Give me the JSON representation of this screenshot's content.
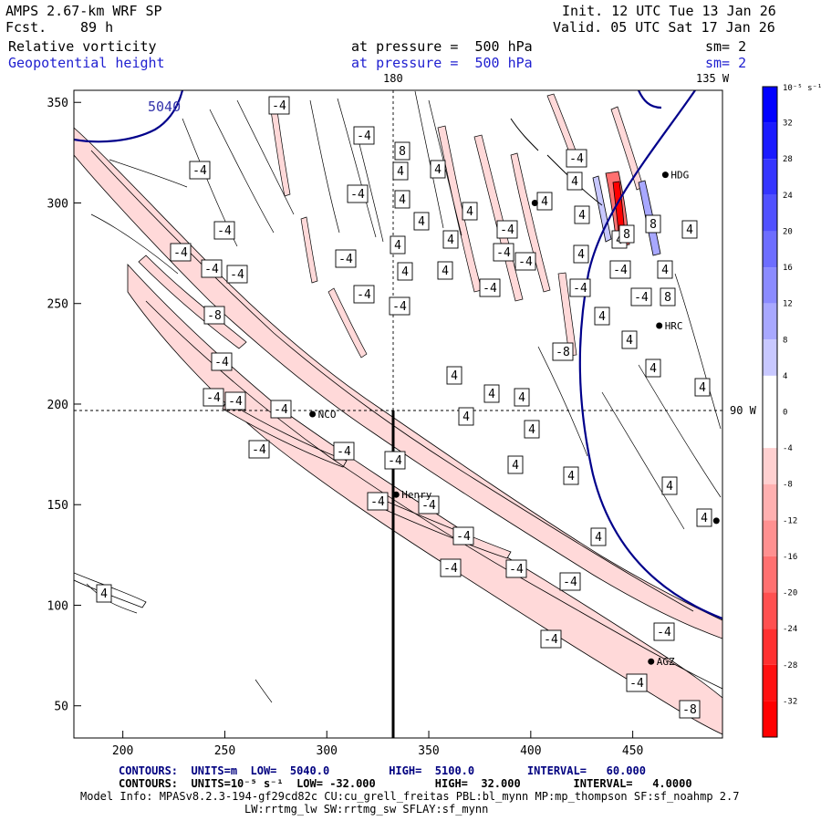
{
  "header": {
    "model": "AMPS 2.67-km WRF SP",
    "fcst_label": "Fcst.",
    "fcst_value": "89 h",
    "init": "Init. 12 UTC Tue 13 Jan 26",
    "valid": "Valid. 05 UTC Sat 17 Jan 26",
    "field1": "Relative vorticity",
    "field2": "Geopotential height",
    "level1": "at pressure =  500 hPa",
    "level2": "at pressure =  500 hPa",
    "sm1": "sm= 2",
    "sm2": "sm= 2"
  },
  "footer": {
    "line1_label": "CONTOURS:  UNITS=m  LOW=  5040.0         HIGH=  5100.0        INTERVAL=   60.000",
    "line2_label": "CONTOURS:  UNITS=10⁻⁵ s⁻¹  LOW= -32.000         HIGH=  32.000        INTERVAL=   4.0000",
    "model_info": "Model Info: MPASv8.2.3-194-gf29cd82c CU:cu_grell_freitas PBL:bl_mynn MP:mp_thompson SF:sf_noahmp 2.7",
    "model_info2": "LW:rrtmg_lw SW:rrtmg_sw SFLAY:sf_mynn"
  },
  "chart_data": {
    "type": "contour-map",
    "x_ticks": [
      "200",
      "250",
      "300",
      "350",
      "400",
      "450"
    ],
    "y_ticks": [
      "50",
      "100",
      "150",
      "200",
      "250",
      "300",
      "350"
    ],
    "xlim": [
      176,
      494
    ],
    "ylim": [
      34,
      356
    ],
    "top_labels": {
      "lon180": "180",
      "lon135": "135 W"
    },
    "right_label": "90 W",
    "height_contour_label": "5040",
    "stations": [
      {
        "name": "NCO",
        "x": 293,
        "y": 195
      },
      {
        "name": "Henry",
        "x": 334,
        "y": 155
      },
      {
        "name": "HRC",
        "x": 463,
        "y": 239
      },
      {
        "name": "HDG",
        "x": 466,
        "y": 314
      },
      {
        "name": "AGZ",
        "x": 459,
        "y": 72
      },
      {
        "name": "",
        "x": 402,
        "y": 300
      },
      {
        "name": "",
        "x": 491,
        "y": 142
      }
    ],
    "contour_labels": [
      {
        "t": "-4",
        "x": 219,
        "y": 186
      },
      {
        "t": "-4",
        "x": 198,
        "y": 276
      },
      {
        "t": "-4",
        "x": 232,
        "y": 294
      },
      {
        "t": "-4",
        "x": 246,
        "y": 252
      },
      {
        "t": "-8",
        "x": 235,
        "y": 345
      },
      {
        "t": "-4",
        "x": 260,
        "y": 300
      },
      {
        "t": "-4",
        "x": 243,
        "y": 396
      },
      {
        "t": "-4",
        "x": 234,
        "y": 435
      },
      {
        "t": "-4",
        "x": 258,
        "y": 439
      },
      {
        "t": "-4",
        "x": 308,
        "y": 448
      },
      {
        "t": "-4",
        "x": 284,
        "y": 492
      },
      {
        "t": "-4",
        "x": 377,
        "y": 494
      },
      {
        "t": "-4",
        "x": 306,
        "y": 115
      },
      {
        "t": "-4",
        "x": 399,
        "y": 148
      },
      {
        "t": "-4",
        "x": 392,
        "y": 212
      },
      {
        "t": "-4",
        "x": 379,
        "y": 283
      },
      {
        "t": "-4",
        "x": 399,
        "y": 322
      },
      {
        "t": "-4",
        "x": 438,
        "y": 335
      },
      {
        "t": "8",
        "x": 441,
        "y": 165
      },
      {
        "t": "4",
        "x": 439,
        "y": 187
      },
      {
        "t": "4",
        "x": 441,
        "y": 218
      },
      {
        "t": "4",
        "x": 436,
        "y": 268
      },
      {
        "t": "4",
        "x": 444,
        "y": 297
      },
      {
        "t": "4",
        "x": 480,
        "y": 185
      },
      {
        "t": "4",
        "x": 462,
        "y": 242
      },
      {
        "t": "4",
        "x": 494,
        "y": 262
      },
      {
        "t": "4",
        "x": 488,
        "y": 296
      },
      {
        "t": "4",
        "x": 515,
        "y": 231
      },
      {
        "t": "-4",
        "x": 537,
        "y": 315
      },
      {
        "t": "-4",
        "x": 556,
        "y": 251
      },
      {
        "t": "-4",
        "x": 552,
        "y": 276
      },
      {
        "t": "-4",
        "x": 576,
        "y": 286
      },
      {
        "t": "4",
        "x": 498,
        "y": 411
      },
      {
        "t": "4",
        "x": 539,
        "y": 431
      },
      {
        "t": "4",
        "x": 511,
        "y": 456
      },
      {
        "t": "4",
        "x": 572,
        "y": 435
      },
      {
        "t": "4",
        "x": 583,
        "y": 470
      },
      {
        "t": "4",
        "x": 565,
        "y": 509
      },
      {
        "t": "4",
        "x": 626,
        "y": 521
      },
      {
        "t": "4",
        "x": 656,
        "y": 588
      },
      {
        "t": "-4",
        "x": 433,
        "y": 504
      },
      {
        "t": "-4",
        "x": 414,
        "y": 549
      },
      {
        "t": "-4",
        "x": 470,
        "y": 553
      },
      {
        "t": "-4",
        "x": 508,
        "y": 587
      },
      {
        "t": "-4",
        "x": 494,
        "y": 622
      },
      {
        "t": "-4",
        "x": 566,
        "y": 623
      },
      {
        "t": "-4",
        "x": 625,
        "y": 637
      },
      {
        "t": "-4",
        "x": 604,
        "y": 700
      },
      {
        "t": "-4",
        "x": 728,
        "y": 692
      },
      {
        "t": "-4",
        "x": 698,
        "y": 748
      },
      {
        "t": "-8",
        "x": 756,
        "y": 777
      },
      {
        "t": "4",
        "x": 114,
        "y": 650
      },
      {
        "t": "-4",
        "x": 636,
        "y": 315
      },
      {
        "t": "-8",
        "x": 617,
        "y": 385
      },
      {
        "t": "-4",
        "x": 632,
        "y": 173
      },
      {
        "t": "4",
        "x": 630,
        "y": 198
      },
      {
        "t": "4",
        "x": 597,
        "y": 220
      },
      {
        "t": "4",
        "x": 638,
        "y": 235
      },
      {
        "t": "4",
        "x": 637,
        "y": 278
      },
      {
        "t": "4",
        "x": 660,
        "y": 346
      },
      {
        "t": "4",
        "x": 679,
        "y": 262
      },
      {
        "t": "8",
        "x": 687,
        "y": 256
      },
      {
        "t": "-4",
        "x": 680,
        "y": 295
      },
      {
        "t": "-4",
        "x": 703,
        "y": 325
      },
      {
        "t": "4",
        "x": 690,
        "y": 372
      },
      {
        "t": "4",
        "x": 716,
        "y": 403
      },
      {
        "t": "4",
        "x": 729,
        "y": 295
      },
      {
        "t": "8",
        "x": 716,
        "y": 245
      },
      {
        "t": "8",
        "x": 732,
        "y": 325
      },
      {
        "t": "4",
        "x": 756,
        "y": 251
      },
      {
        "t": "4",
        "x": 770,
        "y": 424
      },
      {
        "t": "4",
        "x": 734,
        "y": 532
      },
      {
        "t": "4",
        "x": 772,
        "y": 567
      }
    ],
    "colorbar": {
      "units": "10⁻⁵ s⁻¹",
      "levels": [
        "32",
        "28",
        "24",
        "20",
        "16",
        "12",
        "8",
        "4",
        "0",
        "-4",
        "-8",
        "-12",
        "-16",
        "-20",
        "-24",
        "-28",
        "-32"
      ],
      "colors": [
        "#0000ff",
        "#1a1aff",
        "#3535ff",
        "#5151ff",
        "#6d6dff",
        "#8b8bff",
        "#a8a8ff",
        "#c8c8ff",
        "#ffffff",
        "#ffffff",
        "#ffd0d0",
        "#ffb0b0",
        "#ff9090",
        "#ff7070",
        "#ff5050",
        "#ff3030",
        "#ff1010",
        "#ff0000"
      ]
    }
  }
}
